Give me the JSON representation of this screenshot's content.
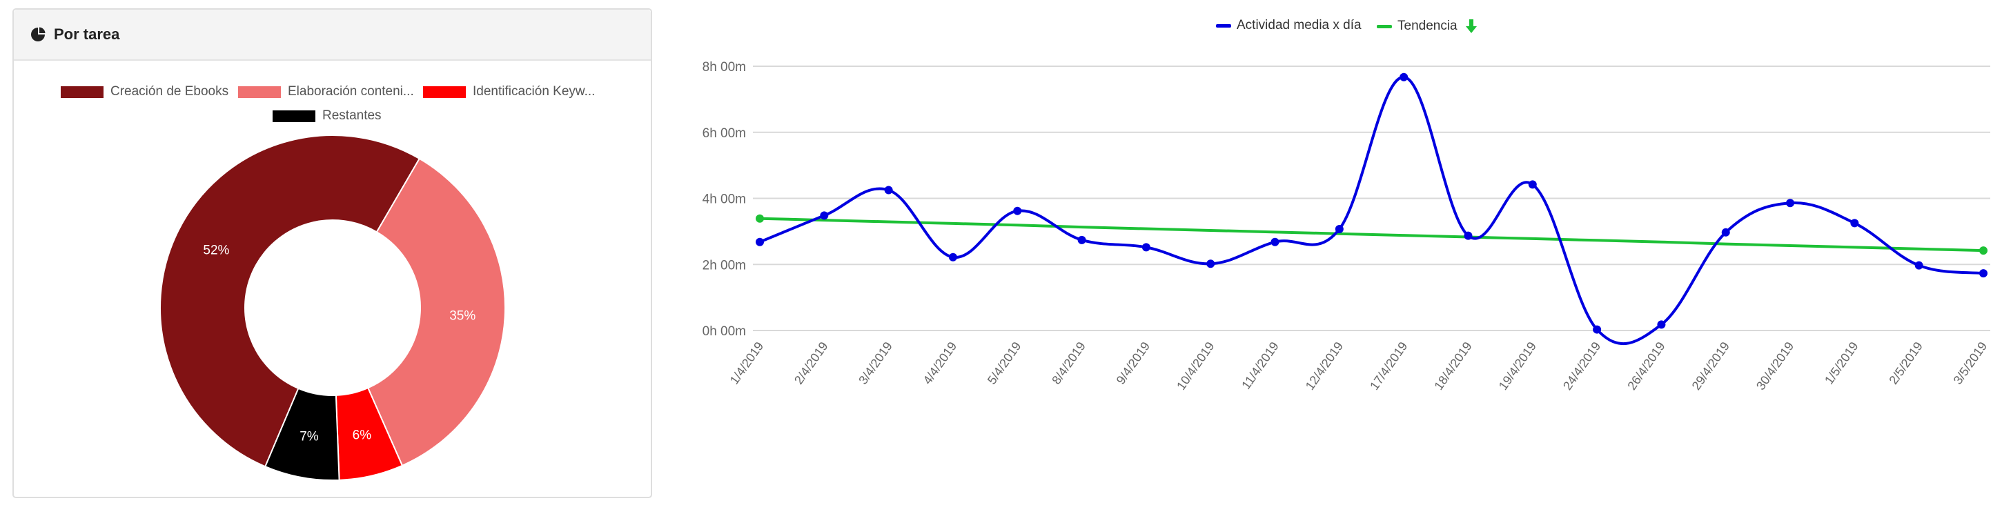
{
  "panel": {
    "title": "Por tarea"
  },
  "pie_legend": [
    {
      "label": "Creación de Ebooks",
      "color": "#811214"
    },
    {
      "label": "Elaboración conteni...",
      "color": "#f07070"
    },
    {
      "label": "Identificación Keyw...",
      "color": "#ff0000"
    },
    {
      "label": "Restantes",
      "color": "#000000"
    }
  ],
  "line_legend": {
    "series1": "Actividad media x día",
    "series2": "Tendencia",
    "trend_icon": "arrow-down-icon"
  },
  "colors": {
    "actividad": "#0000e0",
    "tendencia": "#1dc136",
    "grid": "#d9d9d9"
  },
  "chart_data": [
    {
      "type": "pie",
      "donut": true,
      "categories": [
        "Creación de Ebooks",
        "Elaboración conteni...",
        "Identificación Keyw...",
        "Restantes"
      ],
      "values": [
        52,
        35,
        6,
        7
      ],
      "labels": [
        "52%",
        "35%",
        "6%",
        "7%"
      ],
      "colors": [
        "#811214",
        "#f07070",
        "#ff0000",
        "#000000"
      ]
    },
    {
      "type": "line",
      "x": [
        "1/4/2019",
        "2/4/2019",
        "3/4/2019",
        "4/4/2019",
        "5/4/2019",
        "8/4/2019",
        "9/4/2019",
        "10/4/2019",
        "11/4/2019",
        "12/4/2019",
        "17/4/2019",
        "18/4/2019",
        "19/4/2019",
        "24/4/2019",
        "26/4/2019",
        "29/4/2019",
        "30/4/2019",
        "1/5/2019",
        "2/5/2019",
        "3/5/2019"
      ],
      "yticks": [
        "0h 00m",
        "2h 00m",
        "4h 00m",
        "6h 00m",
        "8h 00m"
      ],
      "ylim": [
        0,
        8
      ],
      "y_unit": "hours",
      "grid": true,
      "legend_position": "top-center",
      "series": [
        {
          "name": "Actividad media x día",
          "color": "#0000e0",
          "smooth": true,
          "values": [
            2.68,
            3.48,
            4.25,
            2.22,
            3.62,
            2.74,
            2.52,
            2.02,
            2.68,
            3.07,
            7.67,
            2.87,
            4.42,
            0.03,
            0.18,
            2.97,
            3.86,
            3.25,
            1.97,
            1.73
          ]
        },
        {
          "name": "Tendencia",
          "color": "#1dc136",
          "values": [
            3.39,
            3.34,
            3.29,
            3.24,
            3.19,
            3.13,
            3.08,
            3.03,
            2.98,
            2.93,
            2.88,
            2.83,
            2.78,
            2.73,
            2.68,
            2.62,
            2.57,
            2.52,
            2.47,
            2.42
          ]
        }
      ]
    }
  ]
}
